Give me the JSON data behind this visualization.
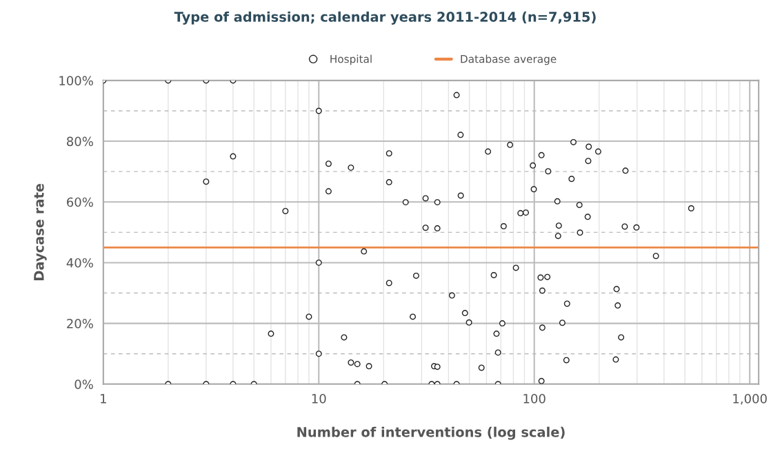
{
  "chart_data": {
    "type": "scatter",
    "title": "Type of admission; calendar years 2011-2014 (n=7,915)",
    "xlabel": "Number of interventions (log scale)",
    "ylabel": "Daycase rate",
    "series": [
      {
        "name": "Hospital",
        "color": "#222222",
        "marker": "circle",
        "x": [
          1,
          2,
          3,
          4,
          10,
          4,
          3,
          7,
          10,
          9,
          6,
          10,
          2,
          3,
          4,
          5,
          43.6,
          45.5,
          77.2,
          61,
          21.2,
          11.1,
          14.1,
          98.5,
          11.1,
          21.2,
          99.5,
          25.3,
          31.3,
          35.5,
          45.6,
          86.3,
          91.4,
          31.3,
          35.5,
          72.1,
          16.2,
          28.3,
          21.2,
          64.9,
          82.2,
          41.5,
          47.7,
          49.8,
          71.1,
          27.3,
          13.1,
          66.8,
          67.9,
          14.1,
          15.1,
          17.1,
          34.3,
          35.5,
          56.9,
          15.1,
          20.2,
          33.4,
          35.5,
          43.6,
          67.9,
          108,
          152,
          179,
          198,
          178,
          116,
          265,
          149,
          128,
          162,
          535,
          177,
          130,
          263,
          298,
          129,
          163,
          367,
          107,
          115,
          109,
          241,
          142,
          244,
          135,
          109,
          253,
          141,
          239,
          108
        ],
        "values": [
          100,
          100,
          100,
          100,
          90,
          75,
          66.7,
          57,
          40,
          22.2,
          16.6,
          10,
          0,
          0,
          0,
          0,
          95.2,
          82.1,
          78.8,
          76.6,
          76,
          72.6,
          71.3,
          72,
          63.5,
          66.5,
          64.2,
          59.9,
          61.2,
          59.9,
          62.1,
          56.3,
          56.5,
          51.5,
          51.3,
          52,
          43.7,
          35.7,
          33.3,
          35.9,
          38.3,
          29.2,
          23.4,
          20.3,
          20,
          22.2,
          15.4,
          16.6,
          10.4,
          7.1,
          6.6,
          5.9,
          5.9,
          5.7,
          5.4,
          0,
          0,
          0,
          0,
          0,
          0,
          75.4,
          79.7,
          78.2,
          76.6,
          73.5,
          70.1,
          70.3,
          67.6,
          60.2,
          59,
          57.9,
          55.1,
          52.2,
          51.9,
          51.6,
          48.8,
          49.9,
          42.2,
          35.1,
          35.3,
          30.8,
          31.3,
          26.5,
          25.9,
          20.2,
          18.6,
          15.4,
          7.9,
          8.1,
          1
        ]
      }
    ],
    "ref_lines": [
      {
        "axis": "y",
        "value": 45,
        "label": "Database average",
        "color": "#ec8746",
        "line_style": "solid"
      }
    ],
    "log": "x",
    "xlim": [
      1,
      1100
    ],
    "xticks": [
      1,
      10,
      100,
      {
        "value": 1000,
        "label": "1,000"
      }
    ],
    "ylim": [
      0,
      100
    ],
    "yticks": [
      {
        "value": 0,
        "label": "0%"
      },
      {
        "value": 20,
        "label": "20%"
      },
      {
        "value": 40,
        "label": "40%"
      },
      {
        "value": 60,
        "label": "60%"
      },
      {
        "value": 80,
        "label": "80%"
      },
      {
        "value": 100,
        "label": "100%"
      }
    ],
    "grid": true,
    "legend": "top"
  }
}
